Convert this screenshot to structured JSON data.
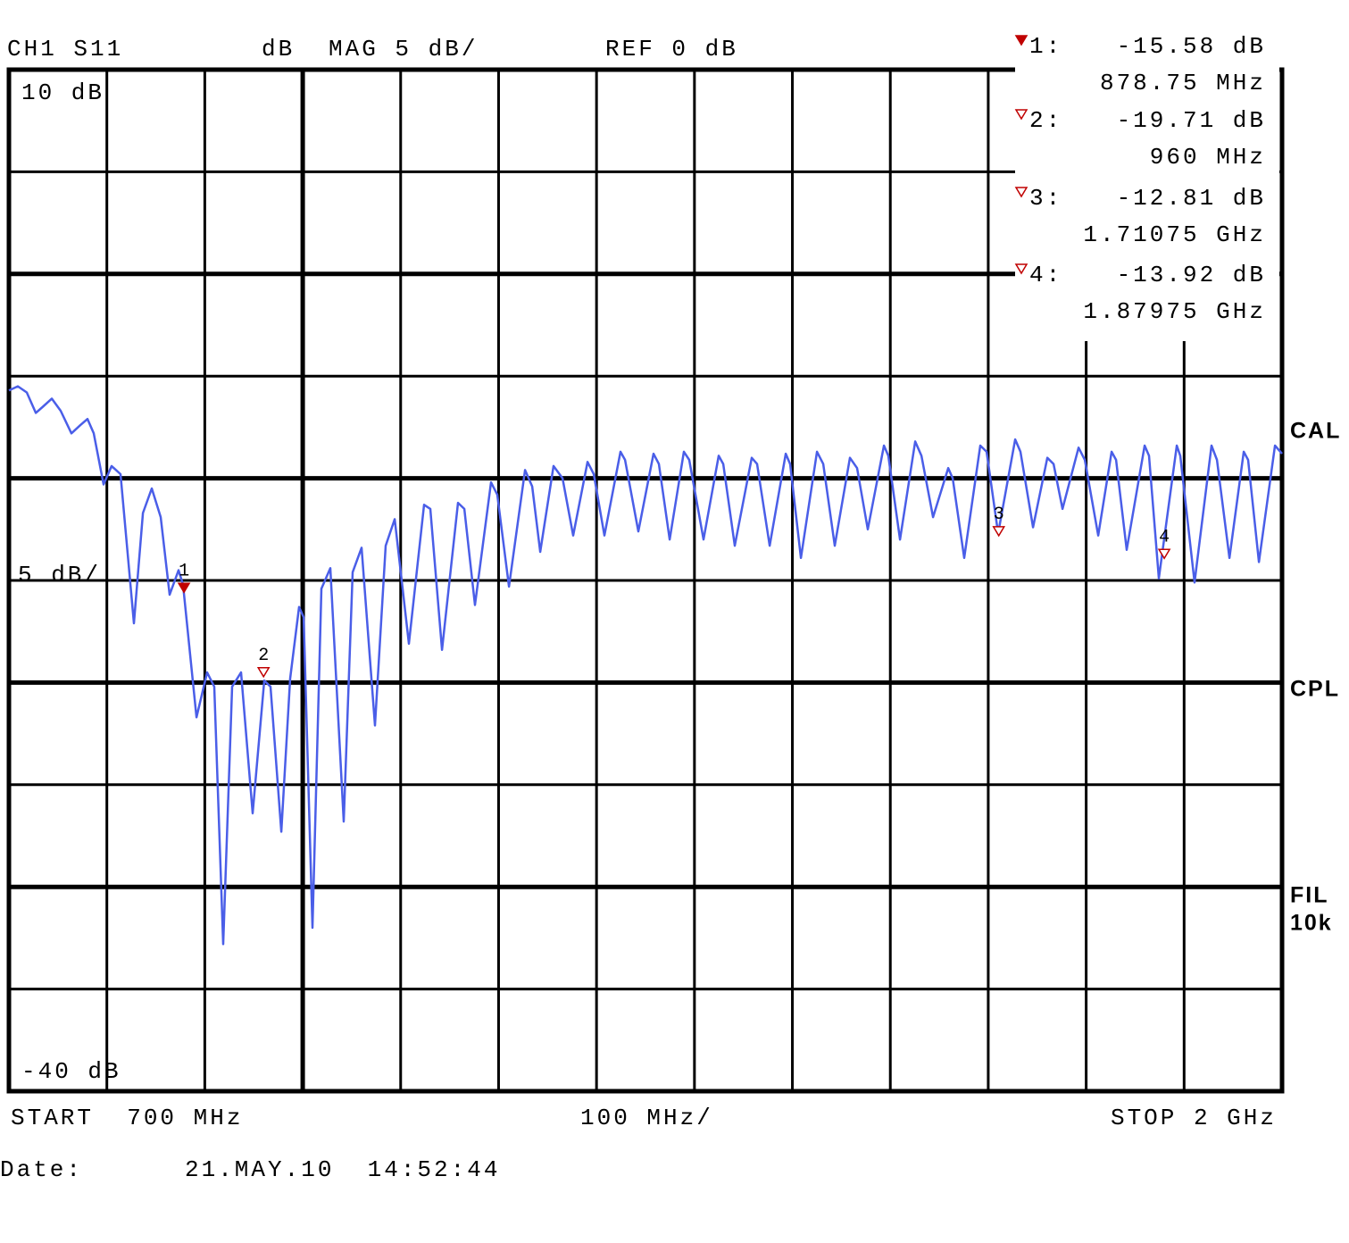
{
  "chart_data": {
    "type": "line",
    "header": [
      "CH1 S11",
      "dB",
      "MAG 5 dB/",
      "REF 0 dB"
    ],
    "scale_label": "5 dB/",
    "xlim": [
      700,
      2000
    ],
    "ylim": [
      -40,
      10
    ],
    "yticks": [
      {
        "value": 10,
        "label": "10 dB"
      },
      {
        "value": -40,
        "label": "-40 dB"
      }
    ],
    "xgrid": [
      700,
      800,
      900,
      1000,
      1100,
      1200,
      1300,
      1400,
      1500,
      1600,
      1700,
      1800,
      1900,
      2000
    ],
    "xgrid_major": [
      1000
    ],
    "ygrid": [
      10,
      5,
      0,
      -5,
      -10,
      -15,
      -20,
      -25,
      -30,
      -35,
      -40
    ],
    "ygrid_major": [
      0,
      -10,
      -20,
      -30
    ],
    "color": "#4a5ee8",
    "x": [
      700,
      709.1,
      718.2,
      727.4,
      734.6,
      743.8,
      752.9,
      763.8,
      772.9,
      780.2,
      786.6,
      796.6,
      804.8,
      814.0,
      827.6,
      836.8,
      845.9,
      855.0,
      864.1,
      873.2,
      877.8,
      891.5,
      902.4,
      909.7,
      918.8,
      927.9,
      937.0,
      948.9,
      960.7,
      967.1,
      978.1,
      987.2,
      996.3,
      1000.9,
      1010.0,
      1019.1,
      1028.2,
      1041.9,
      1051.0,
      1060.1,
      1073.8,
      1084.7,
      1093.9,
      1108.4,
      1123.9,
      1130.3,
      1142.2,
      1158.6,
      1165.0,
      1175.9,
      1192.3,
      1198.7,
      1210.6,
      1227.0,
      1234.3,
      1242.5,
      1256.1,
      1265.3,
      1276.2,
      1290.8,
      1297.2,
      1308.1,
      1324.5,
      1329.1,
      1342.7,
      1358.2,
      1363.7,
      1374.7,
      1389.2,
      1394.7,
      1409.3,
      1424.8,
      1429.4,
      1441.2,
      1458.5,
      1464.0,
      1476.8,
      1493.2,
      1497.7,
      1508.7,
      1525.1,
      1531.5,
      1543.3,
      1558.8,
      1566.1,
      1577.0,
      1593.5,
      1598.0,
      1609.9,
      1625.4,
      1631.8,
      1643.6,
      1659.1,
      1663.7,
      1675.5,
      1691.9,
      1698.3,
      1710.1,
      1727.5,
      1732.9,
      1745.7,
      1760.3,
      1766.7,
      1775.8,
      1792.2,
      1798.6,
      1812.3,
      1826.0,
      1830.5,
      1841.4,
      1859.7,
      1864.2,
      1874.2,
      1892.5,
      1896.1,
      1910.7,
      1928.0,
      1933.5,
      1946.3,
      1960.9,
      1965.4,
      1976.4,
      1992.8,
      2000
    ],
    "values": [
      -5.7,
      -5.5,
      -5.8,
      -6.8,
      -6.5,
      -6.1,
      -6.7,
      -7.8,
      -7.4,
      -7.1,
      -7.8,
      -10.3,
      -9.4,
      -9.8,
      -17.1,
      -11.7,
      -10.5,
      -11.9,
      -15.7,
      -14.5,
      -15.2,
      -21.7,
      -19.5,
      -20.2,
      -32.8,
      -20.2,
      -19.5,
      -26.4,
      -19.9,
      -20.2,
      -27.3,
      -19.8,
      -16.3,
      -16.8,
      -32.0,
      -15.4,
      -14.4,
      -26.8,
      -14.6,
      -13.4,
      -22.1,
      -13.3,
      -12.0,
      -18.1,
      -11.3,
      -11.5,
      -18.4,
      -11.2,
      -11.5,
      -16.2,
      -10.2,
      -10.8,
      -15.3,
      -9.6,
      -10.4,
      -13.6,
      -9.4,
      -10.0,
      -12.8,
      -9.2,
      -9.8,
      -12.8,
      -8.7,
      -9.1,
      -12.6,
      -8.8,
      -9.3,
      -13.0,
      -8.7,
      -9.1,
      -13.0,
      -8.9,
      -9.3,
      -13.3,
      -9.0,
      -9.3,
      -13.3,
      -8.8,
      -9.3,
      -13.9,
      -8.7,
      -9.3,
      -13.3,
      -9.0,
      -9.5,
      -12.5,
      -8.4,
      -8.9,
      -13.0,
      -8.2,
      -8.9,
      -11.9,
      -9.5,
      -10.0,
      -13.9,
      -8.4,
      -8.7,
      -12.7,
      -8.1,
      -8.7,
      -12.4,
      -9.0,
      -9.3,
      -11.5,
      -8.5,
      -9.1,
      -12.8,
      -8.7,
      -9.1,
      -13.5,
      -8.4,
      -8.9,
      -14.9,
      -8.4,
      -8.9,
      -15.1,
      -8.4,
      -9.1,
      -13.9,
      -8.7,
      -9.1,
      -14.1,
      -8.4,
      -8.8
    ],
    "markers": {
      "color": "#c00000",
      "active": 0,
      "names": [
        "1",
        "2",
        "3",
        "4"
      ],
      "readout_names": [
        "1:",
        "2:",
        "3:",
        "4:"
      ],
      "x": [
        878.75,
        960,
        1710.75,
        1879.75
      ],
      "x_labels": [
        "878.75 MHz",
        "960 MHz",
        "1.71075 GHz",
        "1.87975 GHz"
      ],
      "values": [
        -15.58,
        -19.71,
        -12.81,
        -13.92
      ],
      "value_labels": [
        "-15.58 dB",
        "-19.71 dB",
        "-12.81 dB",
        "-13.92 dB"
      ]
    },
    "status": [
      "CAL",
      "CPL",
      "FIL",
      "10k"
    ],
    "status_color": "#00c000",
    "footer": {
      "start": "START  700 MHz",
      "span": "100 MHz/",
      "stop": "STOP 2 GHz"
    },
    "date_label": "Date:",
    "date": "21.MAY.10  14:52:44"
  }
}
